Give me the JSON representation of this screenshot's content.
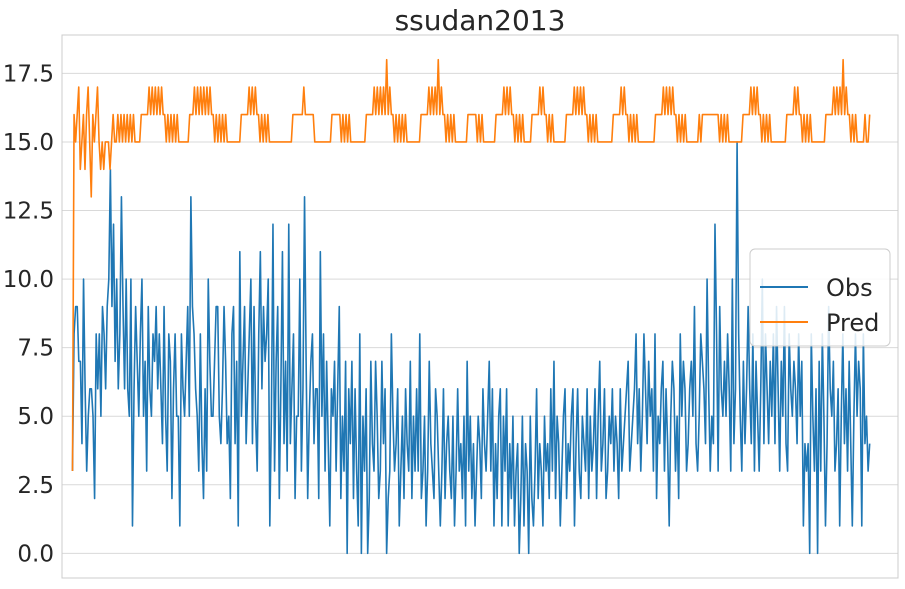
{
  "chart_data": {
    "type": "line",
    "title": "ssudan2013",
    "xlabel": "",
    "ylabel": "",
    "ylim": [
      -0.9,
      18.9
    ],
    "xlim": [
      -10,
      787
    ],
    "yticks": [
      0.0,
      2.5,
      5.0,
      7.5,
      10.0,
      12.5,
      15.0,
      17.5
    ],
    "ytick_labels": [
      "0.0",
      "2.5",
      "5.0",
      "7.5",
      "10.0",
      "12.5",
      "15.0",
      "17.5"
    ],
    "grid": true,
    "legend_position": "center-right",
    "background": "#ffffff",
    "grid_color": "#d9d9d9",
    "series": [
      {
        "name": "Obs",
        "color": "#1f77b4",
        "values": [
          3,
          8,
          9,
          9,
          7,
          7,
          4,
          10,
          6,
          3,
          5,
          6,
          6,
          5,
          2,
          8,
          6,
          8,
          5,
          9,
          8,
          6,
          9,
          10,
          14,
          9,
          12,
          7,
          10,
          6,
          8,
          13,
          9,
          6,
          10,
          6,
          5,
          10,
          1,
          6,
          9,
          7,
          5,
          8,
          10,
          5,
          7,
          3,
          9,
          6,
          5,
          8,
          7,
          9,
          6,
          8,
          6,
          4,
          9,
          5,
          3,
          8,
          7,
          2,
          6,
          8,
          5,
          5,
          1,
          8,
          6,
          5,
          7,
          9,
          5,
          13,
          9,
          8,
          6,
          5,
          3,
          8,
          4,
          2,
          6,
          3,
          10,
          7,
          5,
          5,
          7,
          9,
          9,
          5,
          4,
          6,
          9,
          7,
          4,
          5,
          2,
          8,
          9,
          4,
          7,
          1,
          11,
          5,
          7,
          9,
          4,
          6,
          8,
          10,
          4,
          9,
          5,
          3,
          8,
          11,
          6,
          9,
          7,
          8,
          10,
          1,
          5,
          12,
          3,
          7,
          9,
          2,
          6,
          11,
          4,
          7,
          3,
          12,
          4,
          6,
          8,
          2,
          5,
          5,
          10,
          3,
          6,
          13,
          7,
          2,
          5,
          7,
          8,
          4,
          6,
          6,
          2,
          11,
          5,
          8,
          3,
          7,
          4,
          1,
          6,
          5,
          7,
          3,
          6,
          9,
          2,
          5,
          3,
          7,
          0,
          6,
          4,
          7,
          2,
          6,
          3,
          1,
          8,
          0,
          5,
          3,
          6,
          0,
          2,
          7,
          4,
          3,
          7,
          5,
          2,
          3,
          7,
          4,
          6,
          0,
          2,
          3,
          8,
          5,
          3,
          4,
          6,
          1,
          3,
          5,
          2,
          6,
          4,
          3,
          7,
          2,
          5,
          3,
          6,
          3,
          8,
          2,
          3,
          5,
          1,
          3,
          7,
          4,
          3,
          2,
          6,
          5,
          3,
          1,
          3,
          6,
          2,
          4,
          5,
          3,
          2,
          5,
          1,
          3,
          6,
          3,
          4,
          2,
          5,
          1,
          7,
          3,
          5,
          2,
          4,
          1,
          3,
          5,
          4,
          2,
          6,
          4,
          3,
          5,
          7,
          3,
          6,
          1,
          4,
          2,
          5,
          6,
          1,
          5,
          3,
          6,
          1,
          4,
          2,
          5,
          1,
          3,
          4,
          0,
          2,
          5,
          1,
          4,
          3,
          0,
          5,
          2,
          1,
          3,
          6,
          2,
          4,
          3,
          1,
          5,
          3,
          4,
          2,
          6,
          3,
          7,
          2,
          5,
          4,
          1,
          3,
          5,
          6,
          2,
          4,
          3,
          5,
          6,
          1,
          4,
          6,
          3,
          2,
          5,
          4,
          3,
          6,
          2,
          5,
          3,
          4,
          6,
          2,
          5,
          7,
          3,
          4,
          6,
          2,
          3,
          5,
          4,
          6,
          3,
          5,
          4,
          2,
          6,
          3,
          4,
          5,
          6,
          7,
          3,
          4,
          5,
          6,
          8,
          4,
          6,
          3,
          5,
          8,
          6,
          4,
          7,
          5,
          6,
          3,
          8,
          2,
          5,
          4,
          6,
          7,
          3,
          6,
          4,
          1,
          5,
          7,
          6,
          3,
          5,
          2,
          8,
          5,
          7,
          6,
          3,
          4,
          6,
          7,
          5,
          9,
          4,
          3,
          5,
          8,
          7,
          6,
          4,
          10,
          6,
          3,
          5,
          4,
          12,
          8,
          3,
          9,
          6,
          5,
          7,
          5,
          8,
          6,
          3,
          10,
          4,
          6,
          15,
          8,
          5,
          3,
          7,
          4,
          6,
          9,
          6,
          4,
          8,
          3,
          7,
          5,
          3,
          6,
          10,
          4,
          8,
          6,
          4,
          7,
          5,
          8,
          4,
          9,
          6,
          3,
          7,
          5,
          9,
          4,
          3,
          8,
          6,
          5,
          7,
          6,
          4,
          8,
          5,
          7,
          1,
          4,
          3,
          4,
          0,
          8,
          5,
          3,
          6,
          0,
          7,
          3,
          8,
          5,
          1,
          4,
          9,
          6,
          5,
          7,
          3,
          4,
          6,
          1,
          5,
          8,
          4,
          6,
          3,
          7,
          4,
          1,
          5,
          8,
          5,
          7,
          6,
          1,
          8,
          4,
          5,
          3,
          4
        ],
        "sampled_from_index": 0
      },
      {
        "name": "Pred",
        "color": "#ff7f0e",
        "values": [
          3,
          16,
          15,
          16,
          17,
          14,
          15,
          16,
          14,
          16,
          17,
          15,
          13,
          16,
          15,
          16,
          17,
          15,
          14,
          15,
          14,
          15,
          15,
          15,
          14,
          15,
          16,
          15,
          15,
          16,
          15,
          16,
          15,
          16,
          15,
          16,
          15,
          16,
          15,
          16,
          15,
          15,
          15,
          15,
          16,
          16,
          16,
          16,
          16,
          17,
          16,
          17,
          16,
          17,
          16,
          17,
          16,
          17,
          16,
          16,
          15,
          16,
          15,
          16,
          15,
          16,
          15,
          16,
          15,
          15,
          15,
          15,
          15,
          15,
          15,
          16,
          16,
          16,
          17,
          16,
          17,
          16,
          17,
          16,
          17,
          16,
          17,
          16,
          17,
          16,
          16,
          15,
          16,
          15,
          16,
          15,
          16,
          15,
          16,
          15,
          15,
          15,
          15,
          15,
          15,
          15,
          15,
          15,
          16,
          16,
          16,
          16,
          16,
          17,
          16,
          17,
          16,
          17,
          16,
          16,
          15,
          16,
          15,
          16,
          15,
          16,
          15,
          15,
          15,
          15,
          15,
          15,
          15,
          15,
          15,
          15,
          15,
          15,
          15,
          15,
          15,
          16,
          16,
          16,
          16,
          16,
          16,
          16,
          17,
          16,
          16,
          16,
          16,
          16,
          16,
          15,
          15,
          15,
          15,
          15,
          15,
          15,
          15,
          15,
          15,
          15,
          16,
          16,
          16,
          16,
          16,
          16,
          15,
          16,
          15,
          16,
          15,
          16,
          15,
          15,
          15,
          15,
          15,
          15,
          15,
          15,
          15,
          15,
          16,
          16,
          16,
          16,
          16,
          17,
          16,
          17,
          16,
          17,
          16,
          17,
          16,
          18,
          16,
          17,
          16,
          16,
          15,
          16,
          15,
          16,
          15,
          16,
          15,
          16,
          15,
          15,
          15,
          15,
          15,
          15,
          15,
          15,
          15,
          16,
          16,
          16,
          16,
          16,
          17,
          16,
          17,
          16,
          17,
          16,
          18,
          16,
          17,
          16,
          16,
          15,
          16,
          15,
          16,
          15,
          16,
          15,
          15,
          15,
          15,
          15,
          15,
          15,
          15,
          16,
          16,
          16,
          16,
          16,
          16,
          15,
          16,
          15,
          16,
          15,
          15,
          15,
          15,
          15,
          15,
          15,
          15,
          16,
          16,
          16,
          16,
          16,
          17,
          16,
          17,
          16,
          17,
          16,
          16,
          15,
          16,
          15,
          16,
          15,
          16,
          15,
          15,
          15,
          15,
          15,
          16,
          16,
          16,
          16,
          16,
          17,
          16,
          17,
          16,
          16,
          15,
          16,
          15,
          16,
          15,
          15,
          15,
          15,
          15,
          15,
          15,
          15,
          16,
          16,
          16,
          16,
          16,
          17,
          16,
          17,
          16,
          17,
          16,
          17,
          16,
          16,
          15,
          16,
          15,
          16,
          15,
          16,
          15,
          15,
          15,
          15,
          15,
          15,
          15,
          15,
          15,
          15,
          16,
          16,
          16,
          16,
          16,
          17,
          16,
          17,
          16,
          16,
          15,
          16,
          15,
          16,
          15,
          16,
          15,
          15,
          15,
          15,
          15,
          15,
          15,
          15,
          15,
          15,
          15,
          16,
          16,
          16,
          16,
          16,
          17,
          16,
          17,
          16,
          17,
          16,
          17,
          16,
          16,
          15,
          16,
          15,
          16,
          15,
          16,
          15,
          15,
          15,
          15,
          15,
          15,
          15,
          15,
          16,
          15,
          16,
          16,
          16,
          16,
          16,
          16,
          16,
          16,
          16,
          16,
          16,
          15,
          16,
          15,
          16,
          15,
          16,
          15,
          15,
          15,
          15,
          15,
          15,
          15,
          15,
          15,
          16,
          16,
          16,
          16,
          16,
          17,
          16,
          17,
          16,
          17,
          16,
          16,
          15,
          16,
          15,
          16,
          15,
          16,
          15,
          15,
          15,
          15,
          15,
          15,
          15,
          15,
          15,
          15,
          16,
          16,
          16,
          16,
          16,
          17,
          16,
          17,
          16,
          16,
          15,
          16,
          15,
          16,
          15,
          16,
          15,
          15,
          15,
          15,
          15,
          15,
          15,
          15,
          15,
          16,
          16,
          16,
          16,
          16,
          17,
          16,
          17,
          16,
          17,
          16,
          18,
          16,
          17,
          16,
          16,
          15,
          16,
          15,
          16,
          15,
          15,
          15,
          15,
          15,
          16,
          15,
          15,
          16
        ],
        "sampled_from_index": 0
      }
    ]
  }
}
